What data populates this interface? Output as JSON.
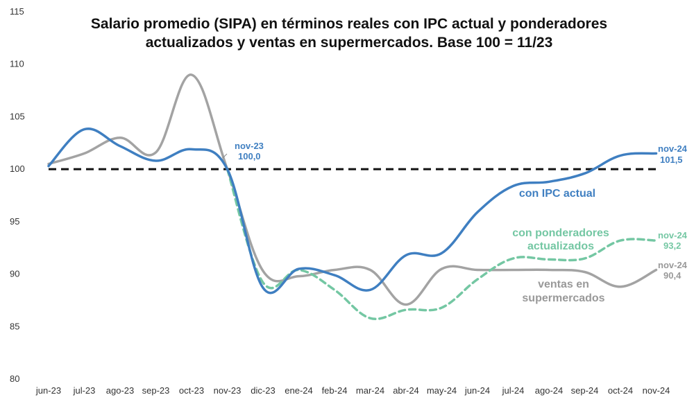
{
  "chart_data": {
    "type": "line",
    "title_line1": "Salario promedio (SIPA) en términos reales con IPC actual y ponderadores",
    "title_line2": "actualizados y ventas en supermercados. Base 100 = 11/23",
    "categories": [
      "jun-23",
      "jul-23",
      "ago-23",
      "sep-23",
      "oct-23",
      "nov-23",
      "dic-23",
      "ene-24",
      "feb-24",
      "mar-24",
      "abr-24",
      "may-24",
      "jun-24",
      "jul-24",
      "ago-24",
      "sep-24",
      "oct-24",
      "nov-24"
    ],
    "ylim": [
      80,
      115
    ],
    "yticks": [
      "80",
      "85",
      "90",
      "95",
      "100",
      "105",
      "110",
      "115"
    ],
    "baseline": {
      "value": 100,
      "color": "#111111"
    },
    "series": [
      {
        "name": "con IPC actual",
        "color": "#3f7fc1",
        "dashed": false,
        "values": [
          100.3,
          103.8,
          102.2,
          100.8,
          101.9,
          100.0,
          88.7,
          90.5,
          89.9,
          88.5,
          91.8,
          92.0,
          95.9,
          98.4,
          98.8,
          99.6,
          101.3,
          101.5
        ]
      },
      {
        "name": "con ponderadores actualizados",
        "color": "#74c7a3",
        "dashed": true,
        "values": [
          null,
          null,
          null,
          null,
          null,
          100.0,
          89.2,
          90.4,
          88.5,
          85.8,
          86.6,
          86.8,
          89.5,
          91.5,
          91.4,
          91.5,
          93.2,
          93.2
        ]
      },
      {
        "name": "ventas en supermercados",
        "color": "#a3a3a3",
        "dashed": false,
        "values": [
          100.5,
          101.5,
          103.0,
          101.6,
          109.0,
          100.0,
          90.3,
          89.8,
          90.4,
          90.4,
          87.1,
          90.5,
          90.4,
          90.4,
          90.4,
          90.2,
          88.8,
          90.4
        ]
      }
    ],
    "annotations": {
      "ref": {
        "period": "nov-23",
        "value": "100,0"
      },
      "ipc": {
        "period": "nov-24",
        "value": "101,5"
      },
      "pond": {
        "period": "nov-24",
        "value": "93,2"
      },
      "ventas": {
        "period": "nov-24",
        "value": "90,4"
      }
    },
    "series_labels": {
      "ipc": "con IPC actual",
      "pond_line1": "con ponderadores",
      "pond_line2": "actualizados",
      "ventas_line1": "ventas en",
      "ventas_line2": "supermercados"
    }
  }
}
